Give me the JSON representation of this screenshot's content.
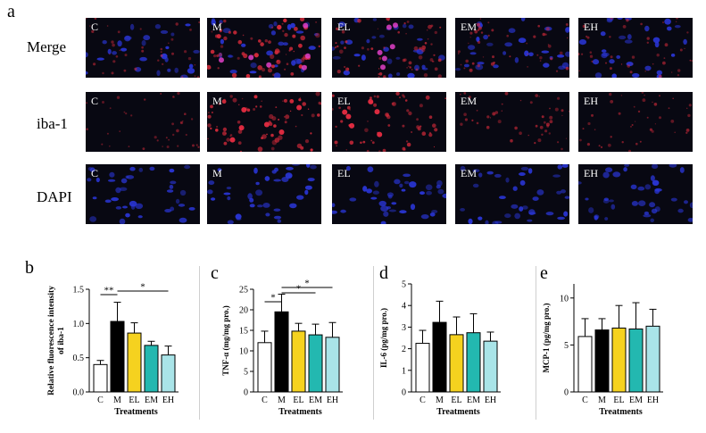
{
  "figure": {
    "panel_a_letter": "a",
    "row_labels": [
      "Merge",
      "iba-1",
      "DAPI"
    ],
    "tile_labels": [
      "C",
      "M",
      "EL",
      "EM",
      "EH"
    ]
  },
  "colors": {
    "C": "#ffffff",
    "M": "#000000",
    "EL": "#f5d21f",
    "EM": "#23b8b0",
    "EH": "#a9e4e8",
    "tile_bg": "#080812",
    "nuclei": "#2a36d8",
    "microglia": "#d42a3a"
  },
  "chart_data": [
    {
      "type": "bar",
      "panel": "b",
      "categories": [
        "C",
        "M",
        "EL",
        "EM",
        "EH"
      ],
      "values": [
        0.4,
        1.03,
        0.86,
        0.68,
        0.54
      ],
      "errors": [
        0.06,
        0.28,
        0.15,
        0.06,
        0.13
      ],
      "ylabel_line1": "Relative fluorescence intensity",
      "ylabel_line2": "of iba-1",
      "xlabel": "Treatments",
      "ylim": [
        0,
        1.5
      ],
      "yticks": [
        "0.0",
        "0.5",
        "1.0",
        "1.5"
      ],
      "significance": [
        {
          "from": "C",
          "to": "M",
          "label": "**"
        },
        {
          "from": "M",
          "to": "EH",
          "label": "*"
        }
      ]
    },
    {
      "type": "bar",
      "panel": "c",
      "categories": [
        "C",
        "M",
        "EL",
        "EM",
        "EH"
      ],
      "values": [
        12.0,
        19.5,
        14.8,
        13.9,
        13.3
      ],
      "errors": [
        2.8,
        4.3,
        1.9,
        2.6,
        3.6
      ],
      "ylabel_line1": "TNF-α (mg/mg pro.)",
      "xlabel": "Treatments",
      "ylim": [
        0,
        25
      ],
      "yticks": [
        "0",
        "5",
        "10",
        "15",
        "20",
        "25"
      ],
      "significance": [
        {
          "from": "C",
          "to": "M",
          "label": "*"
        },
        {
          "from": "M",
          "to": "EM",
          "label": "*"
        },
        {
          "from": "M",
          "to": "EH",
          "label": "*"
        }
      ]
    },
    {
      "type": "bar",
      "panel": "d",
      "categories": [
        "C",
        "M",
        "EL",
        "EM",
        "EH"
      ],
      "values": [
        2.25,
        3.22,
        2.65,
        2.74,
        2.35
      ],
      "errors": [
        0.6,
        0.98,
        0.82,
        0.88,
        0.42
      ],
      "ylabel_line1": "IL-6 (pg/mg pro.)",
      "xlabel": "Treatments",
      "ylim": [
        0,
        5
      ],
      "yticks": [
        "0",
        "1",
        "2",
        "3",
        "4",
        "5"
      ],
      "significance": []
    },
    {
      "type": "bar",
      "panel": "e",
      "categories": [
        "C",
        "M",
        "EL",
        "EM",
        "EH"
      ],
      "values": [
        5.9,
        6.6,
        6.8,
        6.7,
        7.0
      ],
      "errors": [
        1.9,
        1.2,
        2.4,
        2.8,
        1.8
      ],
      "ylabel_line1": "MCP-1 (pg/mg pro.)",
      "xlabel": "Treatments",
      "ylim": [
        0,
        11.5
      ],
      "yticks": [
        "0",
        "5",
        "10"
      ],
      "significance": []
    }
  ]
}
